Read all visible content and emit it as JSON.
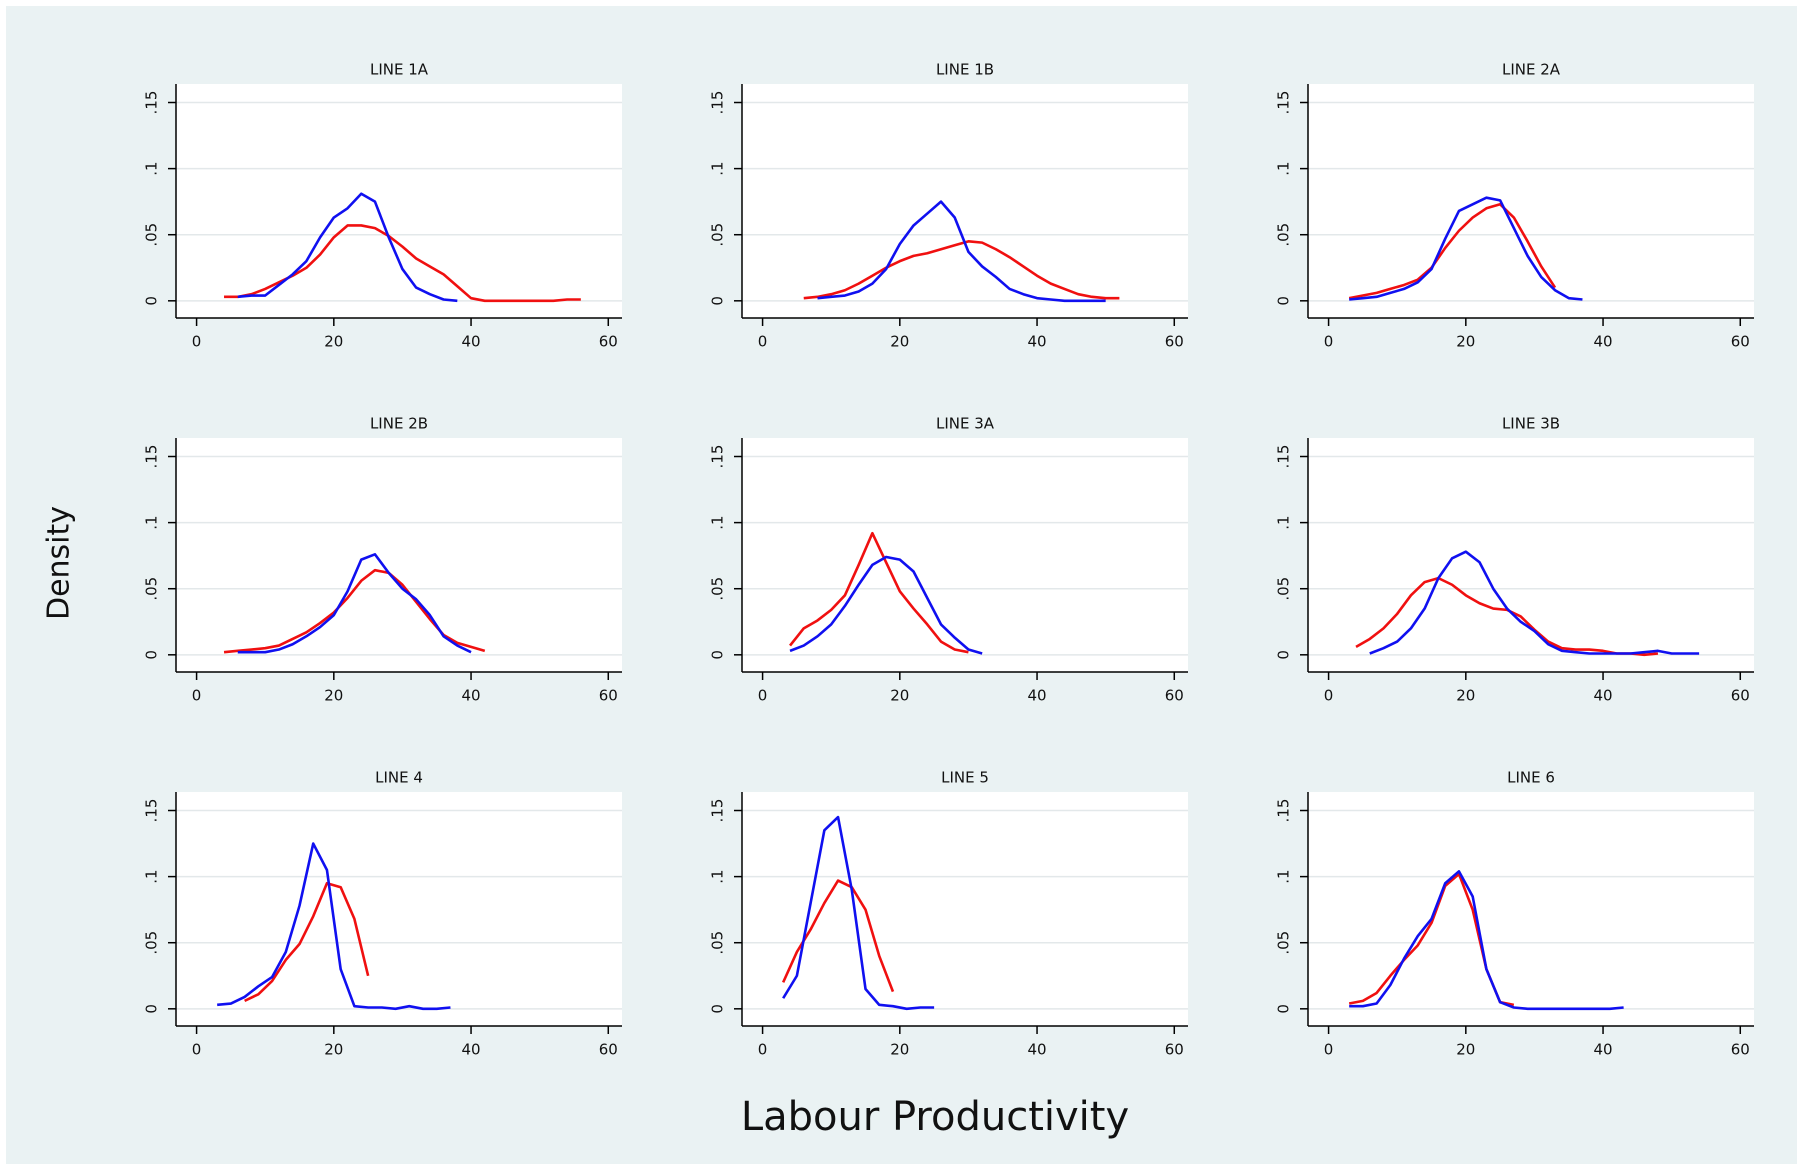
{
  "ylabel": "Density",
  "xlabel": "Labour Productivity",
  "chart_data": [
    {
      "type": "line",
      "title": "LINE 1A",
      "x": [
        4,
        6,
        8,
        10,
        12,
        14,
        16,
        18,
        20,
        22,
        24,
        26,
        28,
        30,
        32,
        34,
        36,
        38,
        40,
        42,
        44,
        46,
        48,
        50,
        52,
        54,
        56
      ],
      "series": [
        {
          "color": "#f01010",
          "values": [
            0.003,
            0.003,
            0.005,
            0.009,
            0.014,
            0.019,
            0.025,
            0.035,
            0.048,
            0.057,
            0.057,
            0.055,
            0.049,
            0.041,
            0.032,
            0.026,
            0.02,
            0.011,
            0.002,
            0,
            0,
            0,
            0,
            0,
            0,
            0.001,
            0.001
          ]
        },
        {
          "color": "#1010f0",
          "values": [
            null,
            0.003,
            0.004,
            0.004,
            0.012,
            0.02,
            0.03,
            0.048,
            0.063,
            0.07,
            0.081,
            0.075,
            0.048,
            0.024,
            0.01,
            0.005,
            0.001,
            0,
            null,
            null,
            null,
            null,
            null,
            null,
            null,
            null,
            null
          ]
        }
      ],
      "xlim": [
        -3,
        62
      ],
      "ylim": [
        -0.013,
        0.164
      ],
      "xticks": [
        0,
        20,
        40,
        60
      ],
      "yticks": [
        0,
        {
          "value": 0.05,
          "label": ".05"
        },
        {
          "value": 0.1,
          "label": ".1"
        },
        {
          "value": 0.15,
          "label": ".15"
        }
      ],
      "grid": true
    },
    {
      "type": "line",
      "title": "LINE 1B",
      "x": [
        6,
        8,
        10,
        12,
        14,
        16,
        18,
        20,
        22,
        24,
        26,
        28,
        30,
        32,
        34,
        36,
        38,
        40,
        42,
        44,
        46,
        48,
        50,
        52
      ],
      "series": [
        {
          "color": "#f01010",
          "values": [
            0.002,
            0.003,
            0.005,
            0.008,
            0.013,
            0.019,
            0.025,
            0.03,
            0.034,
            0.036,
            0.039,
            0.042,
            0.045,
            0.044,
            0.039,
            0.033,
            0.026,
            0.019,
            0.013,
            0.009,
            0.005,
            0.003,
            0.002,
            0.002
          ]
        },
        {
          "color": "#1010f0",
          "values": [
            null,
            0.002,
            0.003,
            0.004,
            0.007,
            0.013,
            0.024,
            0.043,
            0.057,
            0.066,
            0.075,
            0.063,
            0.037,
            0.026,
            0.018,
            0.009,
            0.005,
            0.002,
            0.001,
            0,
            0,
            0,
            0,
            null
          ]
        }
      ],
      "xlim": [
        -3,
        62
      ],
      "ylim": [
        -0.013,
        0.164
      ],
      "xticks": [
        0,
        20,
        40,
        60
      ],
      "yticks": [
        0,
        {
          "value": 0.05,
          "label": ".05"
        },
        {
          "value": 0.1,
          "label": ".1"
        },
        {
          "value": 0.15,
          "label": ".15"
        }
      ],
      "grid": true
    },
    {
      "type": "line",
      "title": "LINE 2A",
      "x": [
        3,
        5,
        7,
        9,
        11,
        13,
        15,
        17,
        19,
        21,
        23,
        25,
        27,
        29,
        31,
        33,
        35,
        37
      ],
      "series": [
        {
          "color": "#f01010",
          "values": [
            0.002,
            0.004,
            0.006,
            0.009,
            0.012,
            0.016,
            0.025,
            0.04,
            0.053,
            0.063,
            0.07,
            0.073,
            0.063,
            0.045,
            0.026,
            0.01,
            null,
            null
          ]
        },
        {
          "color": "#1010f0",
          "values": [
            0.001,
            0.002,
            0.003,
            0.006,
            0.009,
            0.014,
            0.024,
            0.047,
            0.068,
            0.073,
            0.078,
            0.076,
            0.055,
            0.034,
            0.018,
            0.008,
            0.002,
            0.001
          ]
        }
      ],
      "xlim": [
        -3,
        62
      ],
      "ylim": [
        -0.013,
        0.164
      ],
      "xticks": [
        0,
        20,
        40,
        60
      ],
      "yticks": [
        0,
        {
          "value": 0.05,
          "label": ".05"
        },
        {
          "value": 0.1,
          "label": ".1"
        },
        {
          "value": 0.15,
          "label": ".15"
        }
      ],
      "grid": true
    },
    {
      "type": "line",
      "title": "LINE 2B",
      "x": [
        4,
        6,
        8,
        10,
        12,
        14,
        16,
        18,
        20,
        22,
        24,
        26,
        28,
        30,
        32,
        34,
        36,
        38,
        40,
        42
      ],
      "series": [
        {
          "color": "#f01010",
          "values": [
            0.002,
            0.003,
            0.004,
            0.005,
            0.007,
            0.012,
            0.017,
            0.024,
            0.032,
            0.043,
            0.056,
            0.064,
            0.062,
            0.053,
            0.04,
            0.027,
            0.015,
            0.009,
            0.006,
            0.003
          ]
        },
        {
          "color": "#1010f0",
          "values": [
            null,
            0.002,
            0.002,
            0.002,
            0.004,
            0.008,
            0.014,
            0.021,
            0.03,
            0.048,
            0.072,
            0.076,
            0.062,
            0.05,
            0.042,
            0.03,
            0.014,
            0.007,
            0.002,
            null
          ]
        }
      ],
      "xlim": [
        -3,
        62
      ],
      "ylim": [
        -0.013,
        0.164
      ],
      "xticks": [
        0,
        20,
        40,
        60
      ],
      "yticks": [
        0,
        {
          "value": 0.05,
          "label": ".05"
        },
        {
          "value": 0.1,
          "label": ".1"
        },
        {
          "value": 0.15,
          "label": ".15"
        }
      ],
      "grid": true
    },
    {
      "type": "line",
      "title": "LINE 3A",
      "x": [
        4,
        6,
        8,
        10,
        12,
        14,
        16,
        18,
        20,
        22,
        24,
        26,
        28,
        30,
        32,
        34
      ],
      "series": [
        {
          "color": "#f01010",
          "values": [
            0.007,
            0.02,
            0.026,
            0.034,
            0.045,
            0.068,
            0.092,
            0.07,
            0.048,
            0.035,
            0.023,
            0.01,
            0.004,
            0.002,
            null,
            null
          ]
        },
        {
          "color": "#1010f0",
          "values": [
            0.003,
            0.007,
            0.014,
            0.023,
            0.037,
            0.053,
            0.068,
            0.074,
            0.072,
            0.063,
            0.043,
            0.023,
            0.013,
            0.004,
            0.001,
            null
          ]
        }
      ],
      "xlim": [
        -3,
        62
      ],
      "ylim": [
        -0.013,
        0.164
      ],
      "xticks": [
        0,
        20,
        40,
        60
      ],
      "yticks": [
        0,
        {
          "value": 0.05,
          "label": ".05"
        },
        {
          "value": 0.1,
          "label": ".1"
        },
        {
          "value": 0.15,
          "label": ".15"
        }
      ],
      "grid": true
    },
    {
      "type": "line",
      "title": "LINE 3B",
      "x": [
        4,
        6,
        8,
        10,
        12,
        14,
        16,
        18,
        20,
        22,
        24,
        26,
        28,
        30,
        32,
        34,
        36,
        38,
        40,
        42,
        44,
        46,
        48,
        50,
        52,
        54
      ],
      "series": [
        {
          "color": "#f01010",
          "values": [
            0.006,
            0.012,
            0.02,
            0.031,
            0.045,
            0.055,
            0.058,
            0.053,
            0.045,
            0.039,
            0.035,
            0.034,
            0.029,
            0.019,
            0.01,
            0.005,
            0.004,
            0.004,
            0.003,
            0.001,
            0.001,
            0,
            0.001,
            null,
            null,
            null
          ]
        },
        {
          "color": "#1010f0",
          "values": [
            null,
            0.001,
            0.005,
            0.01,
            0.02,
            0.035,
            0.058,
            0.073,
            0.078,
            0.07,
            0.05,
            0.035,
            0.025,
            0.018,
            0.008,
            0.003,
            0.002,
            0.001,
            0.001,
            0.001,
            0.001,
            0.002,
            0.003,
            0.001,
            0.001,
            0.001
          ]
        }
      ],
      "xlim": [
        -3,
        62
      ],
      "ylim": [
        -0.013,
        0.164
      ],
      "xticks": [
        0,
        20,
        40,
        60
      ],
      "yticks": [
        0,
        {
          "value": 0.05,
          "label": ".05"
        },
        {
          "value": 0.1,
          "label": ".1"
        },
        {
          "value": 0.15,
          "label": ".15"
        }
      ],
      "grid": true
    },
    {
      "type": "line",
      "title": "LINE 4",
      "x": [
        3,
        5,
        7,
        9,
        11,
        13,
        15,
        17,
        19,
        21,
        23,
        25,
        27,
        29,
        31,
        33,
        35,
        37
      ],
      "series": [
        {
          "color": "#f01010",
          "values": [
            null,
            null,
            0.006,
            0.011,
            0.021,
            0.037,
            0.049,
            0.07,
            0.095,
            0.092,
            0.068,
            0.025,
            null,
            null,
            null,
            null,
            null,
            null
          ]
        },
        {
          "color": "#1010f0",
          "values": [
            0.003,
            0.004,
            0.009,
            0.017,
            0.024,
            0.043,
            0.078,
            0.125,
            0.105,
            0.03,
            0.002,
            0.001,
            0.001,
            0,
            0.002,
            0,
            0,
            0.001
          ]
        }
      ],
      "xlim": [
        -3,
        62
      ],
      "ylim": [
        -0.013,
        0.164
      ],
      "xticks": [
        0,
        20,
        40,
        60
      ],
      "yticks": [
        0,
        {
          "value": 0.05,
          "label": ".05"
        },
        {
          "value": 0.1,
          "label": ".1"
        },
        {
          "value": 0.15,
          "label": ".15"
        }
      ],
      "grid": true
    },
    {
      "type": "line",
      "title": "LINE 5",
      "x": [
        3,
        5,
        7,
        9,
        11,
        13,
        15,
        17,
        19,
        21,
        23,
        25
      ],
      "series": [
        {
          "color": "#f01010",
          "values": [
            0.02,
            0.043,
            0.06,
            0.08,
            0.097,
            0.092,
            0.075,
            0.04,
            0.013,
            null,
            null,
            null
          ]
        },
        {
          "color": "#1010f0",
          "values": [
            0.008,
            0.025,
            0.08,
            0.135,
            0.145,
            0.09,
            0.015,
            0.003,
            0.002,
            0,
            0.001,
            0.001
          ]
        }
      ],
      "xlim": [
        -3,
        62
      ],
      "ylim": [
        -0.013,
        0.164
      ],
      "xticks": [
        0,
        20,
        40,
        60
      ],
      "yticks": [
        0,
        {
          "value": 0.05,
          "label": ".05"
        },
        {
          "value": 0.1,
          "label": ".1"
        },
        {
          "value": 0.15,
          "label": ".15"
        }
      ],
      "grid": true
    },
    {
      "type": "line",
      "title": "LINE 6",
      "x": [
        3,
        5,
        7,
        9,
        11,
        13,
        15,
        17,
        19,
        21,
        23,
        25,
        27,
        29,
        31,
        33,
        35,
        37,
        39,
        41,
        43
      ],
      "series": [
        {
          "color": "#f01010",
          "values": [
            0.004,
            0.006,
            0.012,
            0.025,
            0.037,
            0.048,
            0.065,
            0.093,
            0.102,
            0.075,
            0.03,
            0.005,
            0.003,
            null,
            null,
            null,
            null,
            null,
            null,
            null,
            null
          ]
        },
        {
          "color": "#1010f0",
          "values": [
            0.002,
            0.002,
            0.004,
            0.018,
            0.038,
            0.055,
            0.068,
            0.095,
            0.104,
            0.085,
            0.03,
            0.005,
            0.001,
            0,
            0,
            0,
            0,
            0,
            0,
            0,
            0.001
          ]
        }
      ],
      "xlim": [
        -3,
        62
      ],
      "ylim": [
        -0.013,
        0.164
      ],
      "xticks": [
        0,
        20,
        40,
        60
      ],
      "yticks": [
        0,
        {
          "value": 0.05,
          "label": ".05"
        },
        {
          "value": 0.1,
          "label": ".1"
        },
        {
          "value": 0.15,
          "label": ".15"
        }
      ],
      "grid": true
    }
  ]
}
